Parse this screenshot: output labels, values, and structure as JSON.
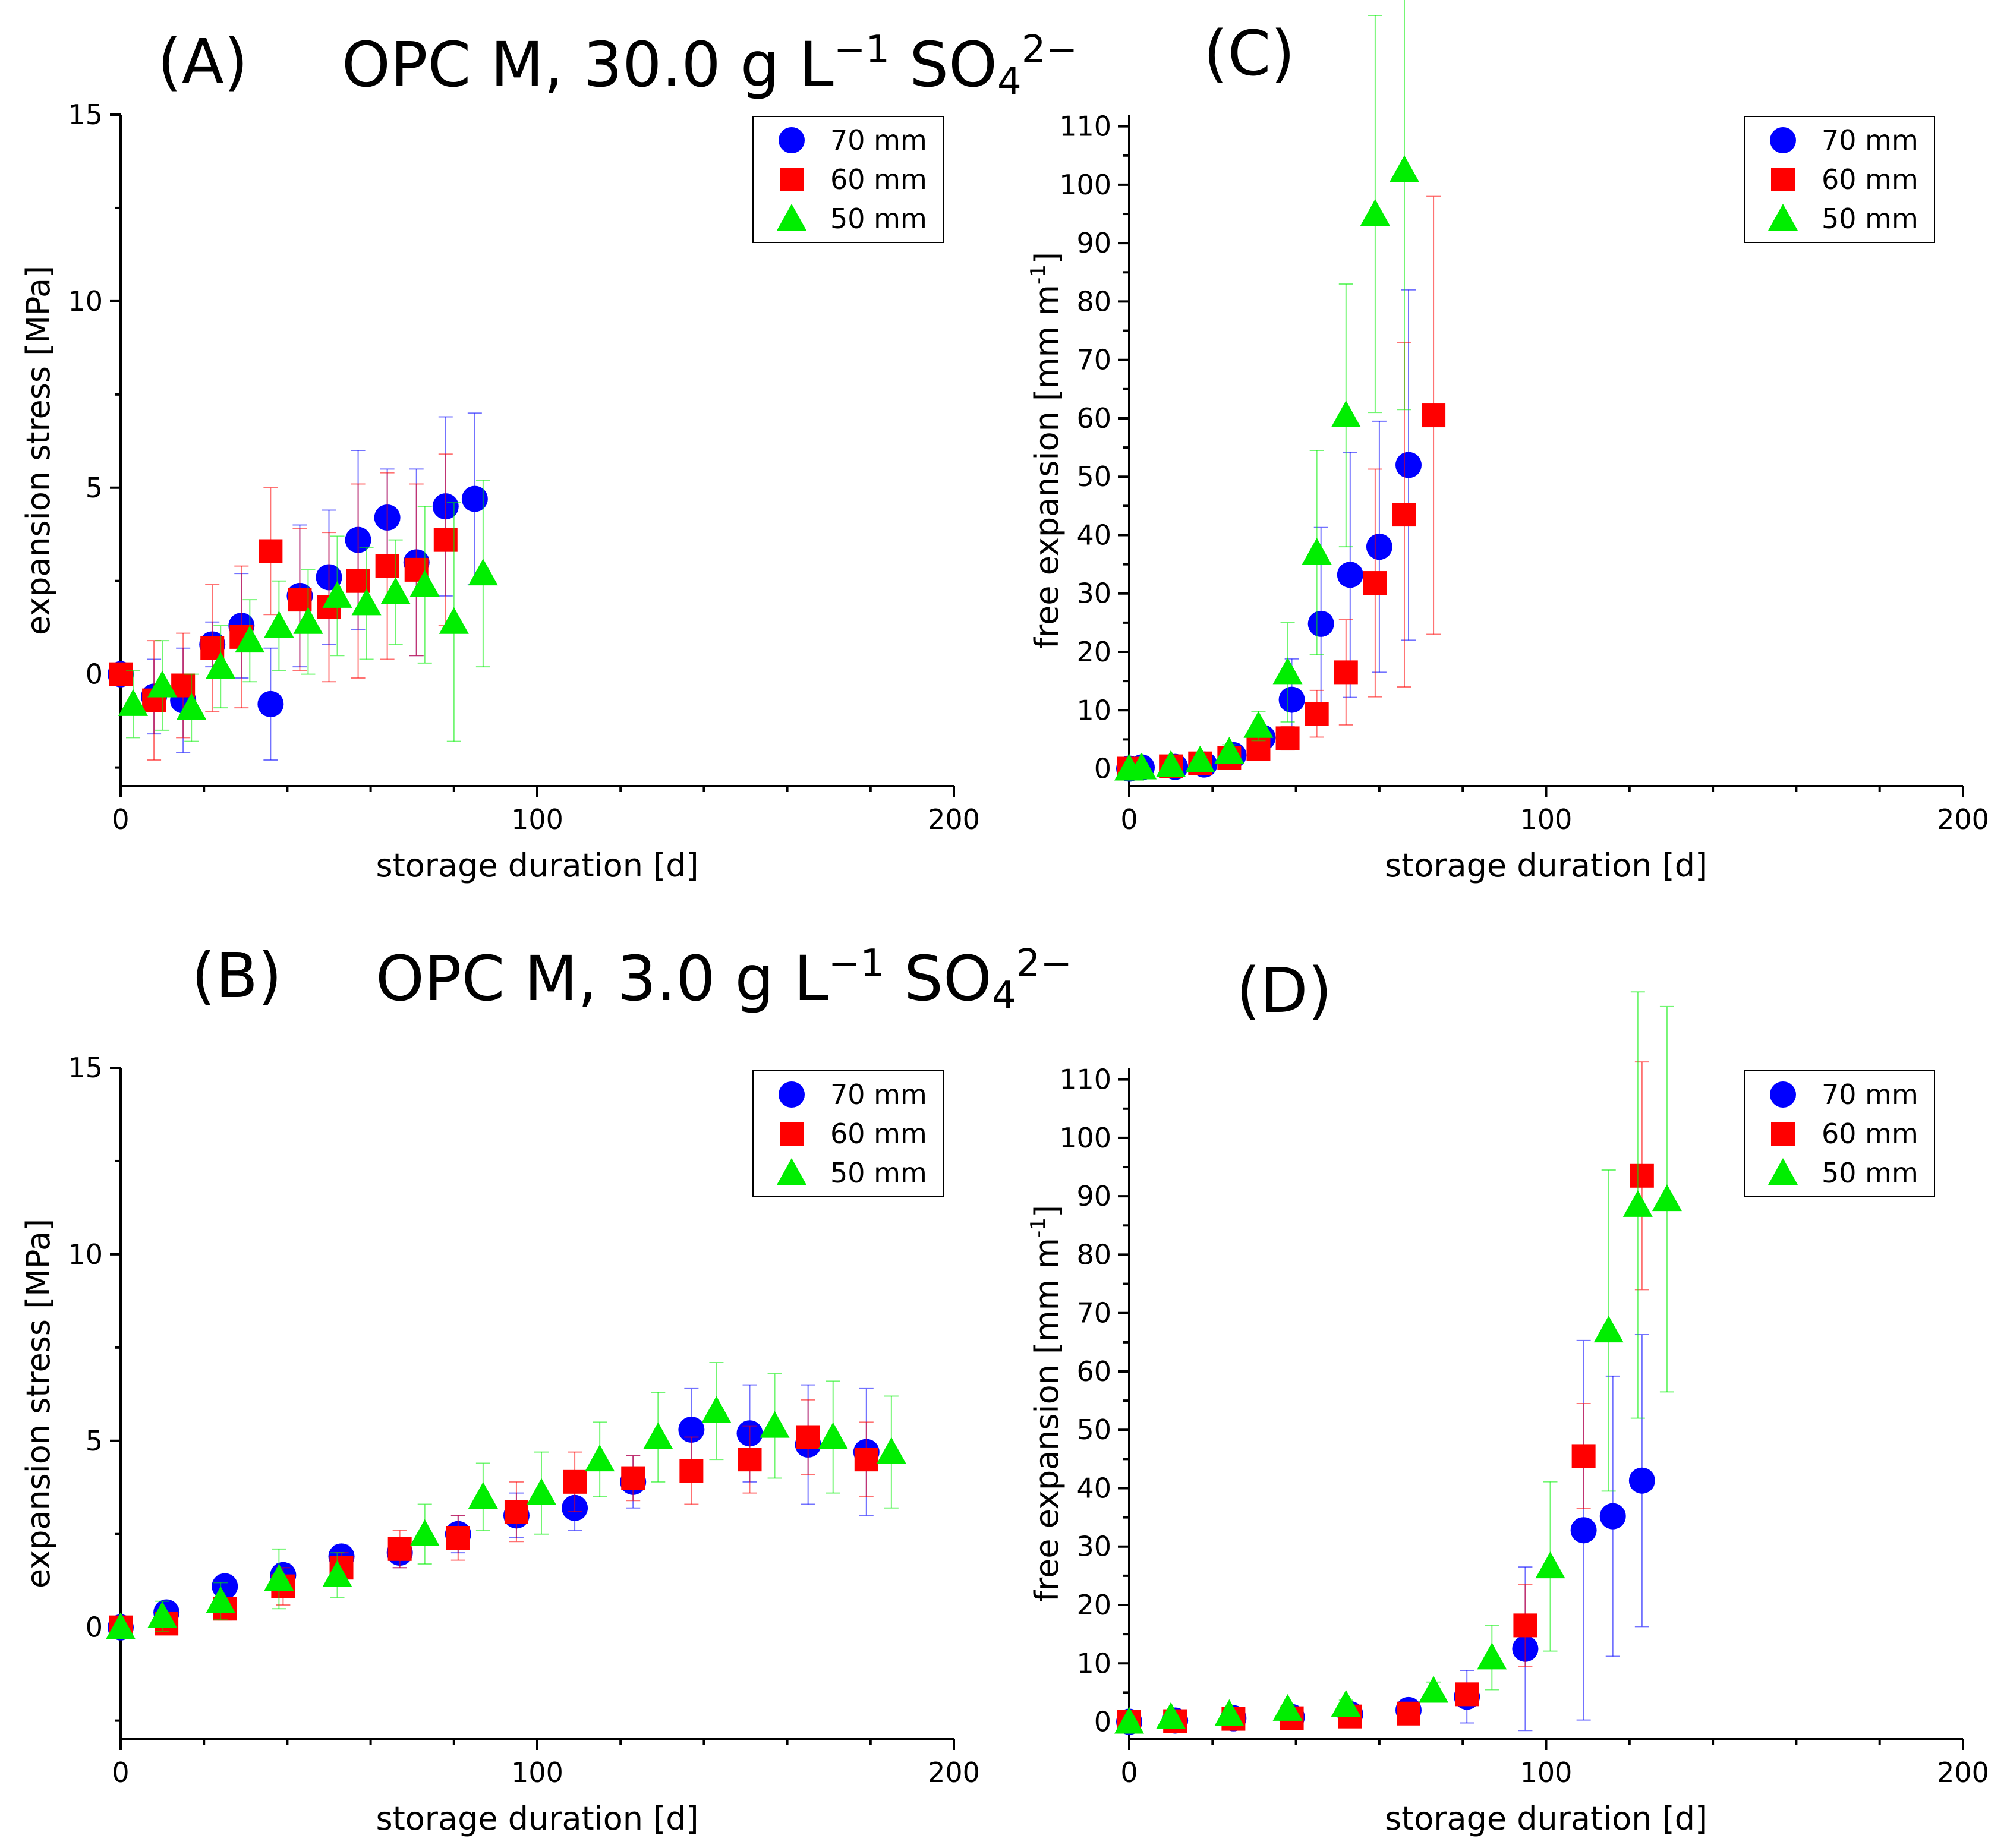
{
  "figure": {
    "title_A": {
      "text": "OPC M, 30.0 g L",
      "exp": "−1",
      "ion": "SO",
      "ion_sub": "4",
      "ion_sup": "2−"
    },
    "title_B": {
      "text": "OPC M, 3.0 g L",
      "exp": "−1",
      "ion": "SO",
      "ion_sub": "4",
      "ion_sup": "2−"
    }
  },
  "colors": {
    "series_70": "#0000ff",
    "series_60": "#ff0000",
    "series_50": "#00ee00"
  },
  "chart_data": [
    {
      "id": "A",
      "panel_label": "(A)",
      "type": "scatter",
      "xlabel": "storage duration [d]",
      "ylabel": "expansion stress [MPa]",
      "xlim": [
        0,
        200
      ],
      "ylim": [
        -3,
        15
      ],
      "xticks": [
        0,
        100,
        200
      ],
      "yticks": [
        0,
        5,
        10,
        15
      ],
      "legend_position": "top-right",
      "series": [
        {
          "name": "70 mm",
          "marker": "circle",
          "x": [
            0,
            8,
            15,
            22,
            29,
            36,
            43,
            50,
            57,
            64,
            71,
            78,
            85
          ],
          "y": [
            0,
            -0.6,
            -0.7,
            0.8,
            1.3,
            -0.8,
            2.1,
            2.6,
            3.6,
            4.2,
            3.0,
            4.5,
            4.7
          ],
          "err": [
            0,
            1.0,
            1.4,
            0.6,
            1.4,
            1.5,
            1.9,
            1.8,
            2.4,
            1.3,
            2.5,
            2.4,
            2.3
          ]
        },
        {
          "name": "60 mm",
          "marker": "square",
          "x": [
            0,
            8,
            15,
            22,
            29,
            36,
            43,
            50,
            57,
            64,
            71,
            78
          ],
          "y": [
            0,
            -0.7,
            -0.3,
            0.7,
            1.0,
            3.3,
            2.0,
            1.8,
            2.5,
            2.9,
            2.8,
            3.6
          ],
          "err": [
            0,
            1.6,
            1.4,
            1.7,
            1.9,
            1.7,
            1.9,
            2.0,
            2.6,
            2.5,
            2.3,
            2.3
          ]
        },
        {
          "name": "50 mm",
          "marker": "triangle",
          "x": [
            3,
            10,
            17,
            24,
            31,
            38,
            45,
            52,
            59,
            66,
            73,
            80,
            87
          ],
          "y": [
            -0.8,
            -0.3,
            -0.9,
            0.2,
            0.9,
            1.3,
            1.4,
            2.1,
            1.9,
            2.2,
            2.4,
            1.4,
            2.7
          ],
          "err": [
            0.9,
            1.2,
            0.9,
            1.1,
            1.1,
            1.2,
            1.4,
            1.6,
            1.5,
            1.4,
            2.1,
            3.2,
            2.5
          ]
        }
      ]
    },
    {
      "id": "B",
      "panel_label": "(B)",
      "type": "scatter",
      "xlabel": "storage duration [d]",
      "ylabel": "expansion stress [MPa]",
      "xlim": [
        0,
        200
      ],
      "ylim": [
        -3,
        15
      ],
      "xticks": [
        0,
        100,
        200
      ],
      "yticks": [
        0,
        5,
        10,
        15
      ],
      "legend_position": "top-right",
      "series": [
        {
          "name": "70 mm",
          "marker": "circle",
          "x": [
            0,
            11,
            25,
            39,
            53,
            67,
            81,
            95,
            109,
            123,
            137,
            151,
            165,
            179
          ],
          "y": [
            0,
            0.4,
            1.1,
            1.4,
            1.9,
            2.0,
            2.5,
            3.0,
            3.2,
            3.9,
            5.3,
            5.2,
            4.9,
            4.7
          ],
          "err": [
            0,
            0.2,
            0.3,
            0.3,
            0.3,
            0.4,
            0.5,
            0.6,
            0.6,
            0.7,
            1.1,
            1.3,
            1.6,
            1.7
          ]
        },
        {
          "name": "60 mm",
          "marker": "square",
          "x": [
            0,
            11,
            25,
            39,
            53,
            67,
            81,
            95,
            109,
            123,
            137,
            151,
            165,
            179
          ],
          "y": [
            0,
            0.1,
            0.5,
            1.1,
            1.6,
            2.1,
            2.4,
            3.1,
            3.9,
            4.0,
            4.2,
            4.5,
            5.1,
            4.5
          ],
          "err": [
            0,
            0.2,
            0.3,
            0.5,
            0.4,
            0.5,
            0.6,
            0.8,
            0.8,
            0.6,
            0.9,
            0.9,
            1.0,
            1.0
          ]
        },
        {
          "name": "50 mm",
          "marker": "triangle",
          "x": [
            0,
            10,
            24,
            38,
            52,
            73,
            87,
            101,
            115,
            129,
            143,
            157,
            171,
            185
          ],
          "y": [
            0,
            0.3,
            0.7,
            1.3,
            1.4,
            2.5,
            3.5,
            3.6,
            4.5,
            5.1,
            5.8,
            5.4,
            5.1,
            4.7
          ],
          "err": [
            0,
            0.4,
            0.5,
            0.8,
            0.6,
            0.8,
            0.9,
            1.1,
            1.0,
            1.2,
            1.3,
            1.4,
            1.5,
            1.5
          ]
        }
      ]
    },
    {
      "id": "C",
      "panel_label": "(C)",
      "type": "scatter",
      "xlabel": "storage duration [d]",
      "ylabel_main": "free expansion [mm m",
      "ylabel_exp": "-1",
      "ylabel_end": "]",
      "xlim": [
        0,
        200
      ],
      "ylim": [
        -3,
        112
      ],
      "xticks": [
        0,
        100,
        200
      ],
      "yticks": [
        0,
        10,
        20,
        30,
        40,
        50,
        60,
        70,
        80,
        90,
        100,
        110
      ],
      "legend_position": "top-right",
      "series": [
        {
          "name": "70 mm",
          "marker": "circle",
          "x": [
            0,
            3,
            11,
            18,
            25,
            32,
            39,
            46,
            53,
            60,
            67
          ],
          "y": [
            0,
            0.2,
            0.3,
            0.7,
            2.3,
            5.3,
            11.8,
            24.8,
            33.2,
            38.0,
            52.0
          ],
          "err": [
            0.2,
            0.3,
            0.4,
            0.6,
            1.0,
            1.5,
            7.0,
            16.5,
            21.0,
            21.5,
            30.0
          ]
        },
        {
          "name": "60 mm",
          "marker": "square",
          "x": [
            0,
            10,
            17,
            24,
            31,
            38,
            45,
            52,
            59,
            66,
            73
          ],
          "y": [
            0,
            0.4,
            0.9,
            1.8,
            3.4,
            5.2,
            9.4,
            16.5,
            31.8,
            43.5,
            60.5
          ],
          "err": [
            0.2,
            0.3,
            0.5,
            0.8,
            1.5,
            2.0,
            4.0,
            9.0,
            19.5,
            29.5,
            37.5
          ]
        },
        {
          "name": "50 mm",
          "marker": "triangle",
          "x": [
            0,
            3,
            10,
            17,
            24,
            31,
            38,
            45,
            52,
            59,
            66
          ],
          "y": [
            0,
            0.2,
            0.6,
            1.4,
            2.9,
            7.3,
            16.5,
            37.0,
            60.5,
            95.0,
            102.5
          ],
          "err": [
            0.2,
            0.3,
            0.5,
            0.7,
            1.2,
            2.5,
            8.5,
            17.5,
            22.5,
            34.0,
            41.0
          ]
        }
      ]
    },
    {
      "id": "D",
      "panel_label": "(D)",
      "type": "scatter",
      "xlabel": "storage duration [d]",
      "ylabel_main": "free expansion [mm m",
      "ylabel_exp": "-1",
      "ylabel_end": "]",
      "xlim": [
        0,
        200
      ],
      "ylim": [
        -3,
        112
      ],
      "xticks": [
        0,
        100,
        200
      ],
      "yticks": [
        0,
        10,
        20,
        30,
        40,
        50,
        60,
        70,
        80,
        90,
        100,
        110
      ],
      "legend_position": "top-right",
      "series": [
        {
          "name": "70 mm",
          "marker": "circle",
          "x": [
            0,
            11,
            25,
            39,
            53,
            67,
            81,
            95,
            109,
            116,
            123
          ],
          "y": [
            0,
            0.2,
            0.6,
            0.8,
            1.3,
            2.0,
            4.3,
            12.5,
            32.8,
            35.2,
            41.3
          ],
          "err": [
            0.2,
            0.2,
            0.3,
            0.4,
            0.5,
            0.8,
            4.5,
            14.0,
            32.5,
            24.0,
            25.0
          ]
        },
        {
          "name": "60 mm",
          "marker": "square",
          "x": [
            0,
            11,
            25,
            39,
            53,
            67,
            81,
            95,
            109,
            123
          ],
          "y": [
            0,
            0.1,
            0.5,
            0.6,
            0.9,
            1.4,
            4.7,
            16.5,
            45.5,
            93.5
          ],
          "err": [
            0.2,
            0.2,
            0.3,
            0.4,
            0.5,
            0.8,
            1.5,
            7.0,
            9.0,
            19.5
          ]
        },
        {
          "name": "50 mm",
          "marker": "triangle",
          "x": [
            0,
            10,
            24,
            38,
            52,
            73,
            87,
            101,
            115,
            122,
            129
          ],
          "y": [
            0,
            0.8,
            1.3,
            2.2,
            2.9,
            5.3,
            11.0,
            26.6,
            67.0,
            88.5,
            89.5
          ],
          "err": [
            0.2,
            0.4,
            0.5,
            0.6,
            0.8,
            1.5,
            5.5,
            14.5,
            27.5,
            36.5,
            33.0
          ]
        }
      ]
    }
  ]
}
